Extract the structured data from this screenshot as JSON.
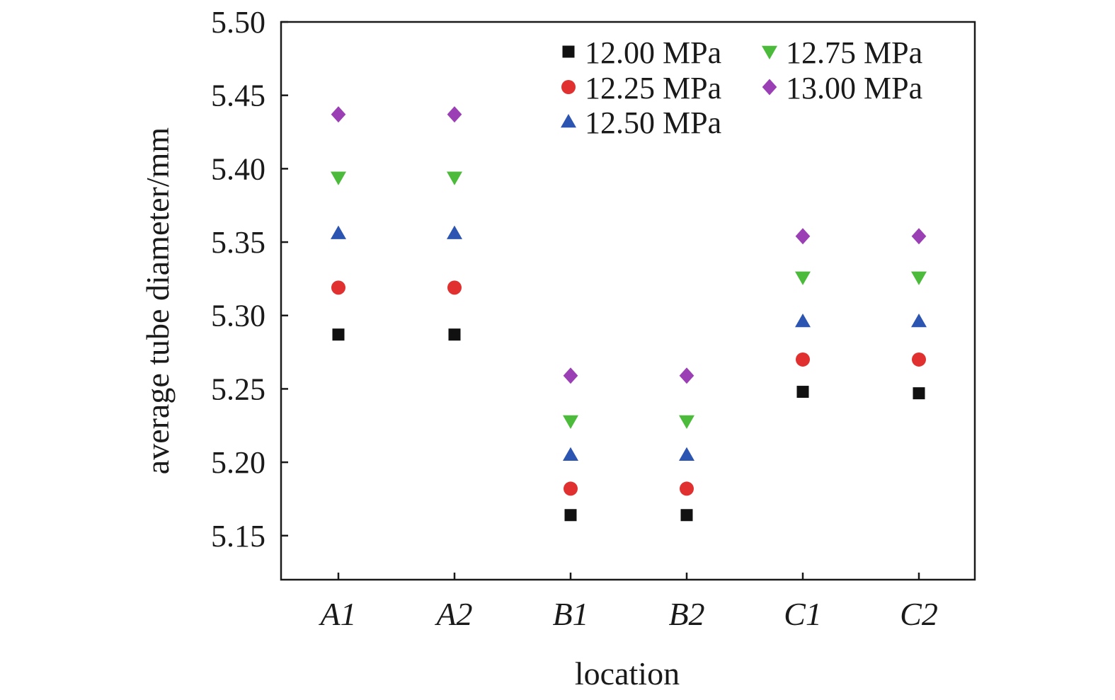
{
  "chart_data": {
    "type": "scatter",
    "xlabel": "location",
    "ylabel": "average tube diameter/mm",
    "categories": [
      "A1",
      "A2",
      "B1",
      "B2",
      "C1",
      "C2"
    ],
    "ylim": [
      5.12,
      5.5
    ],
    "yticks": [
      "5.15",
      "5.20",
      "5.25",
      "5.30",
      "5.35",
      "5.40",
      "5.45",
      "5.50"
    ],
    "grid": false,
    "legend_position": "top-right",
    "series": [
      {
        "name": "12.00 MPa",
        "marker": "square",
        "color": "#111111",
        "values": [
          5.287,
          5.287,
          5.164,
          5.164,
          5.248,
          5.247
        ]
      },
      {
        "name": "12.25 MPa",
        "marker": "circle",
        "color": "#e03030",
        "values": [
          5.319,
          5.319,
          5.182,
          5.182,
          5.27,
          5.27
        ]
      },
      {
        "name": "12.50 MPa",
        "marker": "triangle-up",
        "color": "#2b55b0",
        "values": [
          5.356,
          5.356,
          5.205,
          5.205,
          5.296,
          5.296
        ]
      },
      {
        "name": "12.75 MPa",
        "marker": "triangle-down",
        "color": "#4cba3a",
        "values": [
          5.394,
          5.394,
          5.228,
          5.228,
          5.326,
          5.326
        ]
      },
      {
        "name": "13.00 MPa",
        "marker": "diamond",
        "color": "#9b3fb5",
        "values": [
          5.437,
          5.437,
          5.259,
          5.259,
          5.354,
          5.354
        ]
      }
    ]
  }
}
